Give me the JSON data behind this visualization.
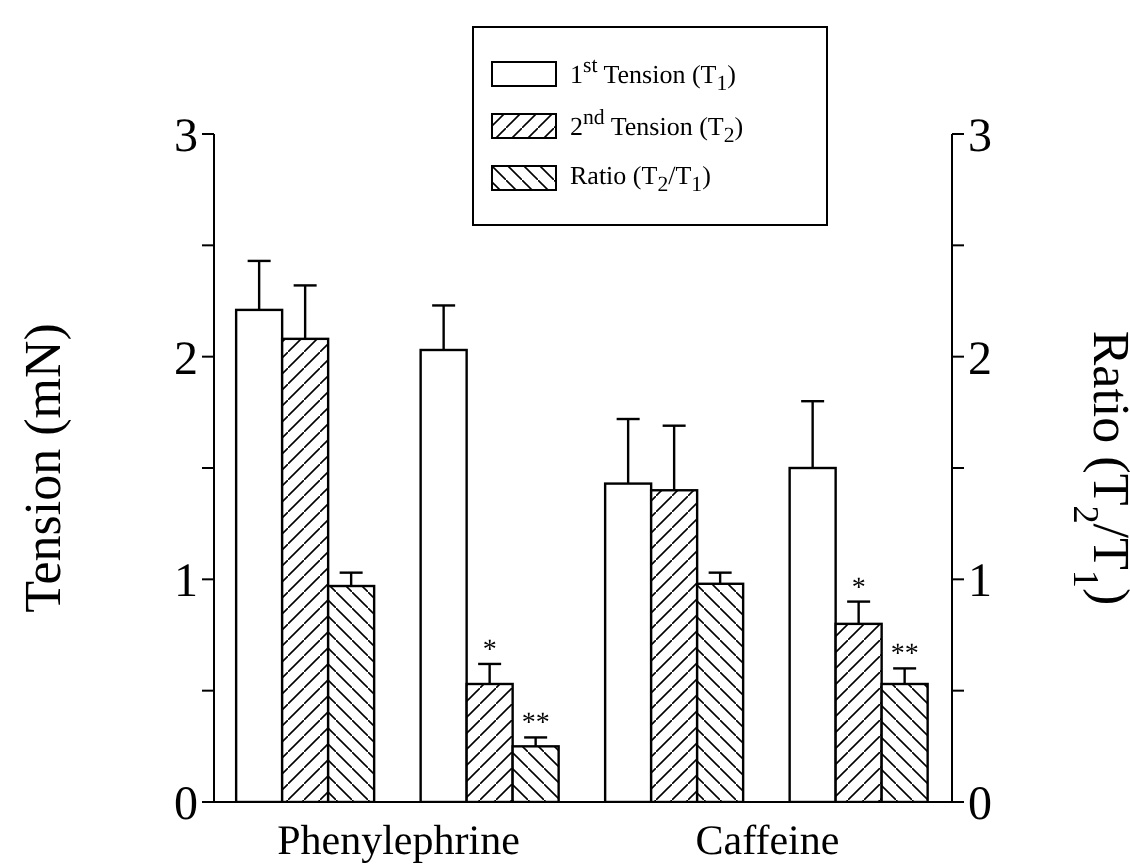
{
  "chart_data": {
    "type": "bar",
    "categories": [
      null,
      null,
      null,
      null
    ],
    "annotations": [
      "Phenylephrine",
      "Caffeine"
    ],
    "ylabel": "Tension (mN)",
    "y2label": "Ratio (T$_{2}$/T$_{1}$)",
    "ylim": [
      0,
      3
    ],
    "yticks": [
      0,
      {
        "value": 0.5,
        "label": null
      },
      1,
      {
        "value": 1.5,
        "label": null
      },
      2,
      {
        "value": 2.5,
        "label": null
      },
      3
    ],
    "y2lim": [
      0,
      3
    ],
    "y2ticks": [
      0,
      {
        "value": 0.5,
        "label": null
      },
      1,
      {
        "value": 1.5,
        "label": null
      },
      2,
      {
        "value": 2.5,
        "label": null
      },
      3
    ],
    "legend": "top",
    "series": [
      {
        "name": "1$^{st}$ Tension (T$_{1}$)",
        "color": "#ffffff",
        "values": [
          2.21,
          2.03,
          1.43,
          1.5
        ],
        "errors": [
          [
            2.21,
            2.43
          ],
          [
            2.03,
            2.23
          ],
          [
            1.43,
            1.72
          ],
          [
            1.5,
            1.8
          ]
        ]
      },
      {
        "name": "2$^{nd}$ Tension (T$_{2}$)",
        "color": "#ffffff",
        "values": [
          2.08,
          0.53,
          1.4,
          0.8
        ],
        "errors": [
          [
            2.08,
            2.32
          ],
          [
            0.53,
            0.62
          ],
          [
            1.4,
            1.69
          ],
          [
            0.8,
            0.9
          ]
        ],
        "value_labels": [
          null,
          "*",
          null,
          "*"
        ]
      },
      {
        "name": "Ratio (T$_{2}$/T$_{1}$)",
        "color": "#ffffff",
        "axis": "y2",
        "values": [
          0.97,
          0.25,
          0.98,
          0.53
        ],
        "errors": [
          [
            0.97,
            1.03
          ],
          [
            0.25,
            0.29
          ],
          [
            0.98,
            1.03
          ],
          [
            0.53,
            0.6
          ]
        ],
        "value_labels": [
          null,
          "**",
          null,
          "**"
        ]
      }
    ]
  }
}
